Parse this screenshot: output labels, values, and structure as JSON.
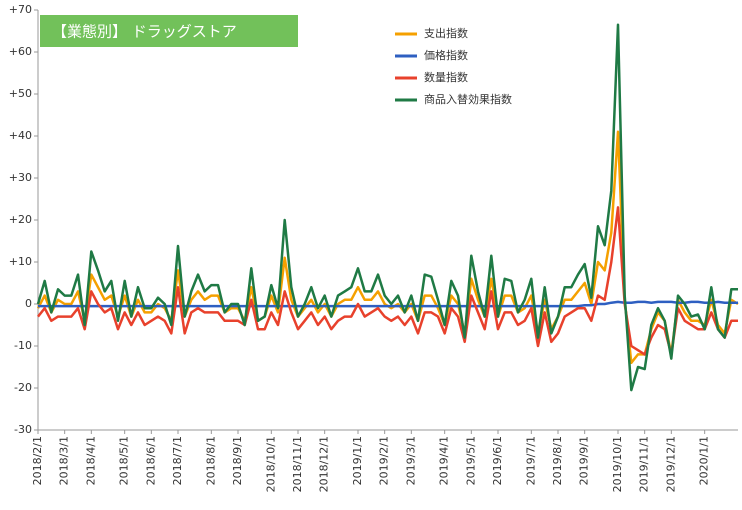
{
  "chart_data": {
    "type": "line",
    "title": "【業態別】 ドラッグストア",
    "categories": [
      "2018/2/1",
      null,
      null,
      null,
      "2018/3/1",
      null,
      null,
      null,
      "2018/4/1",
      null,
      null,
      null,
      null,
      "2018/5/1",
      null,
      null,
      null,
      "2018/6/1",
      null,
      null,
      null,
      "2018/7/1",
      null,
      null,
      null,
      null,
      "2018/8/1",
      null,
      null,
      null,
      "2018/9/1",
      null,
      null,
      null,
      null,
      "2018/10/1",
      null,
      null,
      null,
      "2018/11/1",
      null,
      null,
      null,
      "2018/12/1",
      null,
      null,
      null,
      null,
      "2019/1/1",
      null,
      null,
      null,
      "2019/2/1",
      null,
      null,
      null,
      "2019/3/1",
      null,
      null,
      null,
      null,
      "2019/4/1",
      null,
      null,
      null,
      "2019/5/1",
      null,
      null,
      null,
      "2019/6/1",
      null,
      null,
      null,
      null,
      "2019/7/1",
      null,
      null,
      null,
      "2019/8/1",
      null,
      null,
      null,
      "2019/9/1",
      null,
      null,
      null,
      null,
      "2019/10/1",
      null,
      null,
      null,
      "2019/11/1",
      null,
      null,
      null,
      "2019/12/1",
      null,
      null,
      null,
      null,
      "2020/1/1",
      null,
      null,
      null,
      null,
      null
    ],
    "series": [
      {
        "name": "支出指数",
        "color": "#f5a000",
        "values": [
          -1,
          2,
          -2,
          1,
          0,
          0,
          3,
          -4,
          7,
          4,
          1,
          2,
          -3,
          2,
          -3,
          1,
          -2,
          -2,
          0,
          -1,
          -4,
          8,
          -3,
          1,
          3,
          1,
          2,
          2,
          -2,
          -1,
          -1,
          -4,
          4,
          -4,
          -3,
          2,
          -2,
          11,
          1,
          -3,
          -1,
          1,
          -2,
          0,
          -3,
          0,
          1,
          1,
          4,
          1,
          1,
          3,
          0,
          -1,
          0,
          -2,
          0,
          -4,
          2,
          2,
          -1,
          -5,
          2,
          0,
          -7,
          6,
          1,
          -3,
          6,
          -3,
          2,
          2,
          -2,
          -1,
          2,
          -7,
          1,
          -6,
          -3,
          1,
          1,
          3,
          5,
          0,
          10,
          8,
          17,
          41,
          1,
          -14,
          -12,
          -12,
          -6,
          -2,
          -4,
          -12,
          1,
          -2,
          -4,
          -4,
          -5,
          1,
          -5,
          -7,
          1,
          0
        ]
      },
      {
        "name": "価格指数",
        "color": "#2e5fc1",
        "values": [
          -0.5,
          -0.5,
          -0.5,
          -0.5,
          -0.5,
          -0.5,
          -0.5,
          -0.5,
          -0.5,
          -0.5,
          -0.5,
          -0.5,
          -0.5,
          -0.5,
          -0.5,
          -0.5,
          -0.5,
          -0.5,
          -0.5,
          -0.5,
          -0.5,
          -0.5,
          -0.5,
          -0.5,
          -0.5,
          -0.5,
          -0.5,
          -0.5,
          -0.5,
          -0.5,
          -0.5,
          -0.5,
          -0.5,
          -0.5,
          -0.5,
          -0.5,
          -0.5,
          -0.5,
          -0.5,
          -0.5,
          -0.5,
          -0.5,
          -0.5,
          -0.5,
          -0.5,
          -0.5,
          -0.5,
          -0.5,
          -0.5,
          -0.5,
          -0.5,
          -0.5,
          -0.5,
          -0.5,
          -0.5,
          -0.5,
          -0.5,
          -0.5,
          -0.5,
          -0.5,
          -0.5,
          -0.5,
          -0.5,
          -0.5,
          -0.5,
          -0.5,
          -0.5,
          -0.5,
          -0.5,
          -0.5,
          -0.5,
          -0.5,
          -0.5,
          -0.5,
          -0.5,
          -0.5,
          -0.5,
          -0.5,
          -0.5,
          -0.5,
          -0.5,
          -0.5,
          -0.3,
          -0.3,
          0,
          0,
          0.3,
          0.5,
          0.3,
          0.3,
          0.5,
          0.5,
          0.3,
          0.5,
          0.5,
          0.5,
          0.3,
          0.3,
          0.5,
          0.5,
          0.3,
          0.3,
          0.5,
          0.3,
          0.3,
          0.3
        ]
      },
      {
        "name": "数量指数",
        "color": "#e8412c",
        "values": [
          -3,
          -1,
          -4,
          -3,
          -3,
          -3,
          -1,
          -6,
          3,
          0,
          -2,
          -1,
          -6,
          -2,
          -5,
          -2,
          -5,
          -4,
          -3,
          -4,
          -7,
          4,
          -7,
          -2,
          -1,
          -2,
          -2,
          -2,
          -4,
          -4,
          -4,
          -5,
          1,
          -6,
          -6,
          -2,
          -5,
          3,
          -2,
          -6,
          -4,
          -2,
          -5,
          -3,
          -6,
          -4,
          -3,
          -3,
          0,
          -3,
          -2,
          -1,
          -3,
          -4,
          -3,
          -5,
          -3,
          -7,
          -2,
          -2,
          -3,
          -7,
          -1,
          -3,
          -9,
          2,
          -2,
          -6,
          3,
          -6,
          -2,
          -2,
          -5,
          -4,
          -1,
          -10,
          -2,
          -9,
          -7,
          -3,
          -2,
          -1,
          -1,
          -4,
          2,
          1,
          10,
          23,
          0,
          -10,
          -11,
          -12,
          -8,
          -5,
          -6,
          -12,
          -1,
          -4,
          -5,
          -6,
          -6,
          -2,
          -6,
          -8,
          -4,
          -4
        ]
      },
      {
        "name": "商品入替効果指数",
        "color": "#1f7a45",
        "values": [
          0,
          5.5,
          -2,
          3.5,
          2,
          2,
          7,
          -5,
          12.5,
          8,
          3,
          5.5,
          -4,
          5.5,
          -3,
          4,
          -1,
          -1,
          1.5,
          0,
          -5,
          13.8,
          -3,
          3,
          7,
          3,
          4.5,
          4.5,
          -2,
          0,
          0,
          -5,
          8.5,
          -4,
          -3,
          4.5,
          -1,
          20,
          4,
          -3,
          0,
          4,
          -1,
          2,
          -3,
          2,
          3,
          4,
          8.5,
          3,
          3,
          7,
          2,
          0,
          2,
          -2,
          2,
          -4,
          7,
          6.5,
          1,
          -5,
          5.5,
          2,
          -8,
          11.5,
          3,
          -3,
          11.5,
          -3,
          6,
          5.5,
          -2,
          1,
          6,
          -8,
          4,
          -7,
          -3,
          4,
          4,
          7,
          9.5,
          1.5,
          18.5,
          14,
          27,
          66.5,
          2,
          -20.5,
          -15,
          -15.5,
          -5,
          -1,
          -4,
          -13,
          2,
          0,
          -3,
          -2.5,
          -6,
          4,
          -6,
          -8,
          3.5,
          3.5
        ]
      }
    ],
    "ylim": [
      -30,
      70
    ],
    "yticks": [
      -30,
      -20,
      -10,
      0,
      {
        "value": 10,
        "label": "+10"
      },
      {
        "value": 20,
        "label": "+20"
      },
      {
        "value": 30,
        "label": "+30"
      },
      {
        "value": 40,
        "label": "+40"
      },
      {
        "value": 50,
        "label": "+50"
      },
      {
        "value": 60,
        "label": "+60"
      },
      {
        "value": 70,
        "label": "+70"
      }
    ],
    "grid": false,
    "legend": "top"
  }
}
